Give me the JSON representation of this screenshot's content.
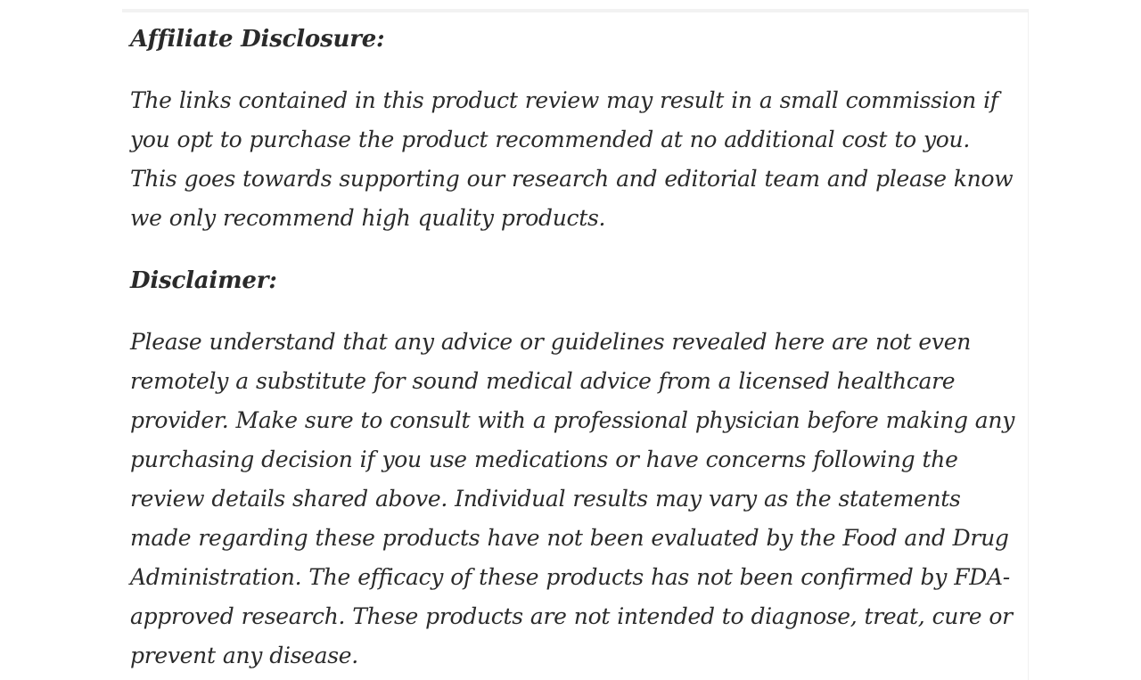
{
  "page": {
    "background_color": "#ffffff",
    "text_color": "#2a2a2a",
    "top_strip_color": "#f2f2f2"
  },
  "sections": [
    {
      "heading": "Affiliate Disclosure:",
      "body": "The links contained in this product review may result in a small commission if you opt to purchase the product recommended at no additional cost to you. This goes towards supporting our research and editorial team and please know we only recommend high quality products."
    },
    {
      "heading": "Disclaimer:",
      "body": "Please understand that any advice or guidelines revealed here are not even remotely a substitute for sound medical advice from a licensed healthcare provider. Make sure to consult with a professional physician before making any purchasing decision if you use medications or have concerns following the review details shared above. Individual results may vary as the statements made regarding these products have not been evaluated by the Food and Drug Administration. The efficacy of these products has not been confirmed by FDA-approved research. These products are not intended to diagnose, treat, cure or prevent any disease."
    }
  ]
}
